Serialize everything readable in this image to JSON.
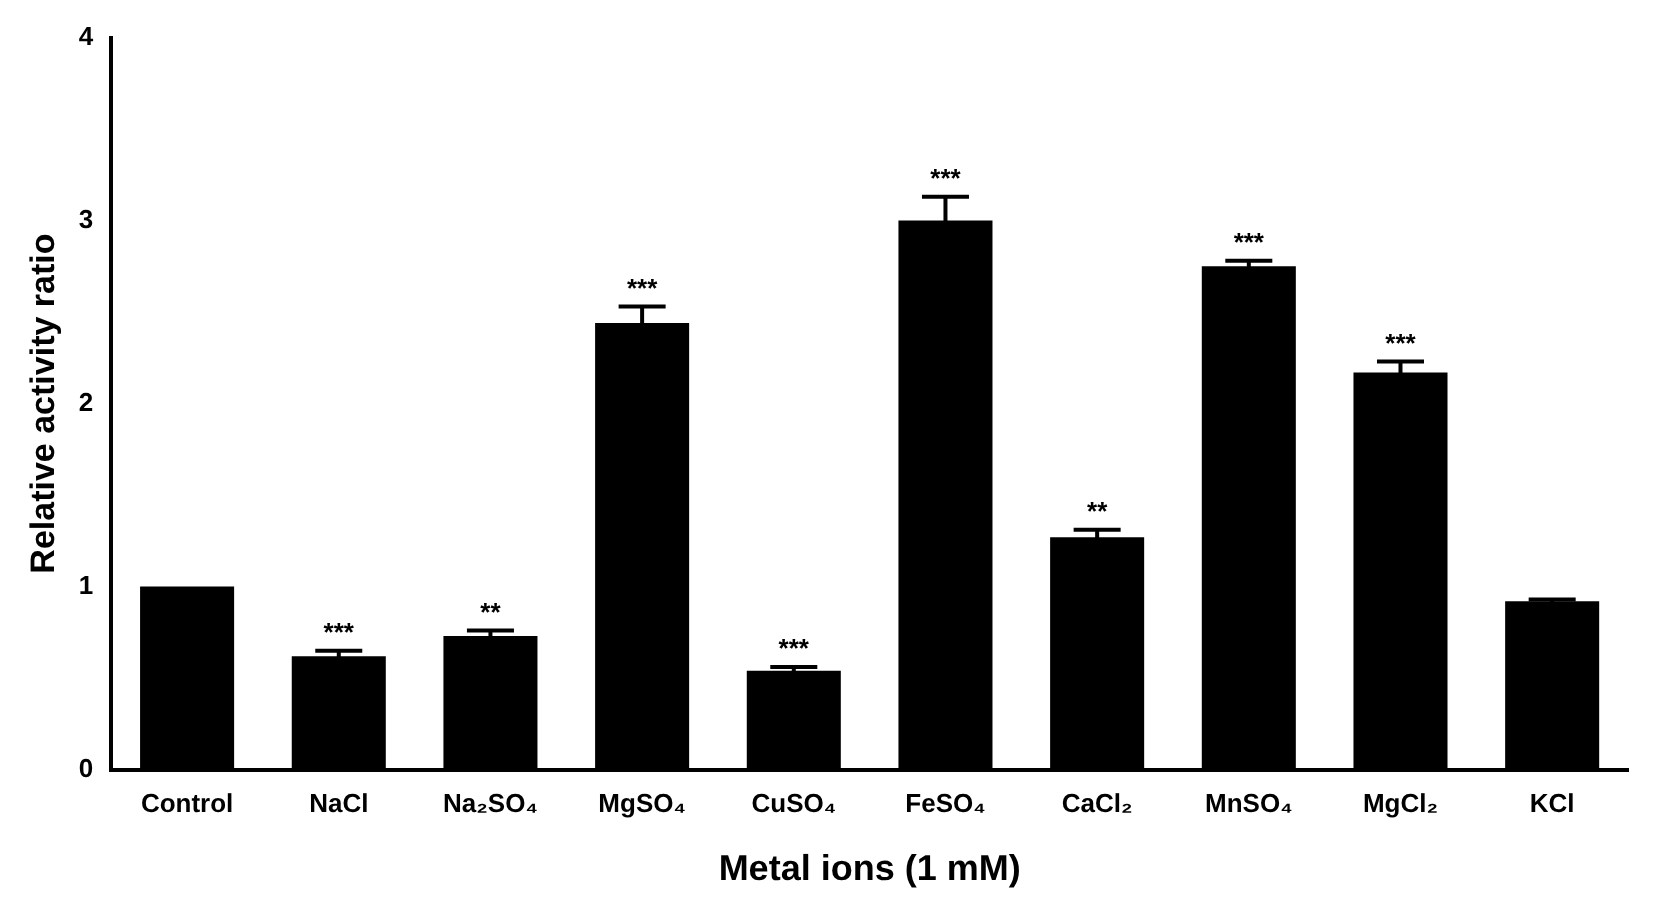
{
  "chart_data": {
    "type": "bar",
    "xlabel": "Metal ions (1 mM)",
    "ylabel": "Relative activity ratio",
    "categories": [
      "Control",
      "NaCl",
      "Na₂SO₄",
      "MgSO₄",
      "CuSO₄",
      "FeSO₄",
      "CaCl₂",
      "MnSO₄",
      "MgCl₂",
      "KCl"
    ],
    "values": [
      1.0,
      0.62,
      0.73,
      2.44,
      0.54,
      3.0,
      1.27,
      2.75,
      2.17,
      0.92
    ],
    "errors": [
      null,
      0.03,
      0.03,
      0.09,
      0.02,
      0.13,
      0.04,
      0.03,
      0.06,
      0.01
    ],
    "color": "#000000",
    "ylim": [
      0,
      4
    ],
    "yticks": [
      0,
      1,
      2,
      3,
      4
    ],
    "grid": false,
    "legend": false,
    "annotations": [
      {
        "text": "***",
        "x": "NaCl",
        "y": 0.65
      },
      {
        "text": "**",
        "x": "Na₂SO₄",
        "y": 0.76
      },
      {
        "text": "***",
        "x": "MgSO₄",
        "y": 2.53
      },
      {
        "text": "***",
        "x": "CuSO₄",
        "y": 0.56
      },
      {
        "text": "***",
        "x": "FeSO₄",
        "y": 3.13
      },
      {
        "text": "**",
        "x": "CaCl₂",
        "y": 1.31
      },
      {
        "text": "***",
        "x": "MnSO₄",
        "y": 2.78
      },
      {
        "text": "***",
        "x": "MgCl₂",
        "y": 2.23
      }
    ]
  }
}
